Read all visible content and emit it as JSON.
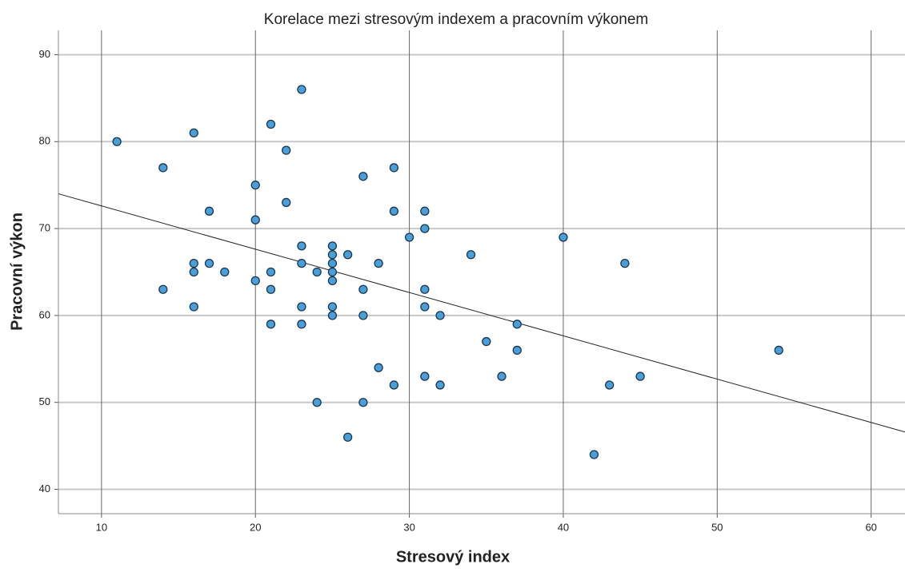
{
  "chart_data": {
    "type": "scatter",
    "title": "Korelace mezi stresovým indexem a pracovním výkonem",
    "x_label": "Stresový index",
    "y_label": "Pracovní výkon",
    "xlim": [
      7.2,
      62.2
    ],
    "ylim": [
      37.2,
      92.8
    ],
    "xticks": [
      10,
      20,
      30,
      40,
      50,
      60
    ],
    "yticks": [
      40,
      50,
      60,
      70,
      80,
      90
    ],
    "grid": true,
    "color": "#4a9fd8",
    "x": [
      11,
      14,
      14,
      16,
      16,
      16,
      16,
      17,
      17,
      18,
      20,
      20,
      20,
      21,
      21,
      21,
      21,
      22,
      22,
      23,
      23,
      23,
      23,
      23,
      24,
      24,
      25,
      25,
      25,
      25,
      25,
      25,
      25,
      26,
      26,
      27,
      27,
      27,
      27,
      28,
      28,
      29,
      29,
      29,
      30,
      31,
      31,
      31,
      31,
      31,
      32,
      32,
      34,
      35,
      36,
      37,
      37,
      40,
      42,
      43,
      44,
      45,
      54
    ],
    "y": [
      80,
      77,
      63,
      81,
      66,
      65,
      61,
      72,
      66,
      65,
      75,
      71,
      64,
      82,
      65,
      63,
      59,
      79,
      73,
      86,
      68,
      66,
      61,
      59,
      65,
      50,
      68,
      67,
      66,
      65,
      64,
      61,
      60,
      67,
      46,
      76,
      63,
      60,
      50,
      66,
      54,
      77,
      72,
      52,
      69,
      72,
      70,
      63,
      61,
      53,
      60,
      52,
      67,
      57,
      53,
      59,
      56,
      69,
      44,
      52,
      66,
      53,
      56
    ],
    "fit_line": {
      "x": [
        7.2,
        62.2
      ],
      "y": [
        74.0,
        46.6
      ]
    }
  }
}
